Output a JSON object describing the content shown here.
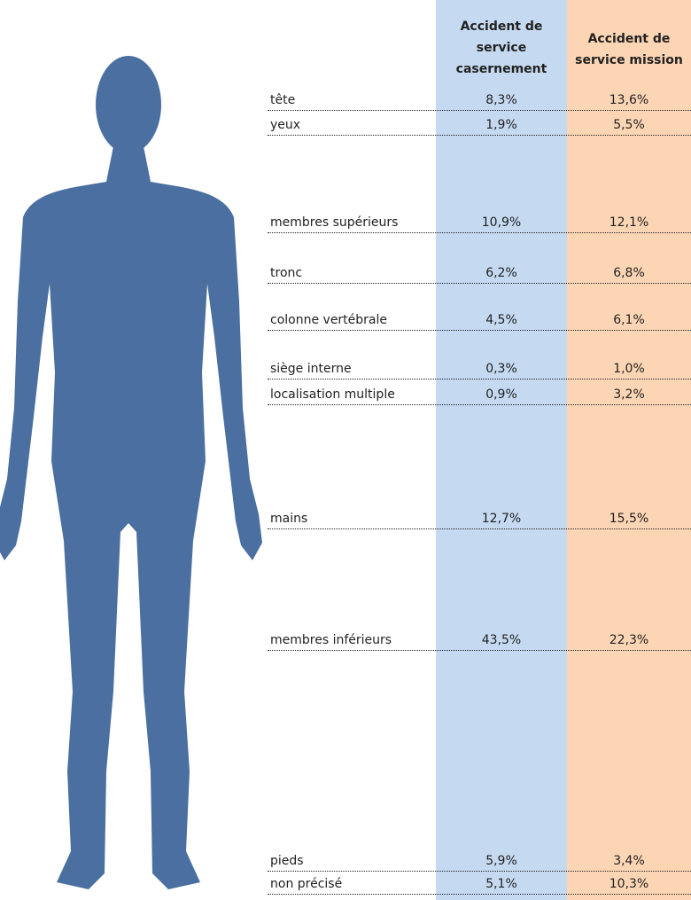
{
  "table": {
    "columns": [
      "Accident de service casernement",
      "Accident de service mission"
    ],
    "rows": [
      [
        "tête",
        "8,3%",
        "13,6%"
      ],
      [
        "yeux",
        "1,9%",
        "5,5%"
      ],
      [
        "membres supérieurs",
        "10,9%",
        "12,1%"
      ],
      [
        "tronc",
        "6,2%",
        "6,8%"
      ],
      [
        "colonne vertébrale",
        "4,5%",
        "6,1%"
      ],
      [
        "siège interne",
        "0,3%",
        "1,0%"
      ],
      [
        "localisation multiple",
        "0,9%",
        "3,2%"
      ],
      [
        "mains",
        "12,7%",
        "15,5%"
      ],
      [
        "membres inférieurs",
        "43,5%",
        "22,3%"
      ],
      [
        "pieds",
        "5,9%",
        "3,4%"
      ],
      [
        "non précisé",
        "5,1%",
        "10,3%"
      ]
    ]
  }
}
